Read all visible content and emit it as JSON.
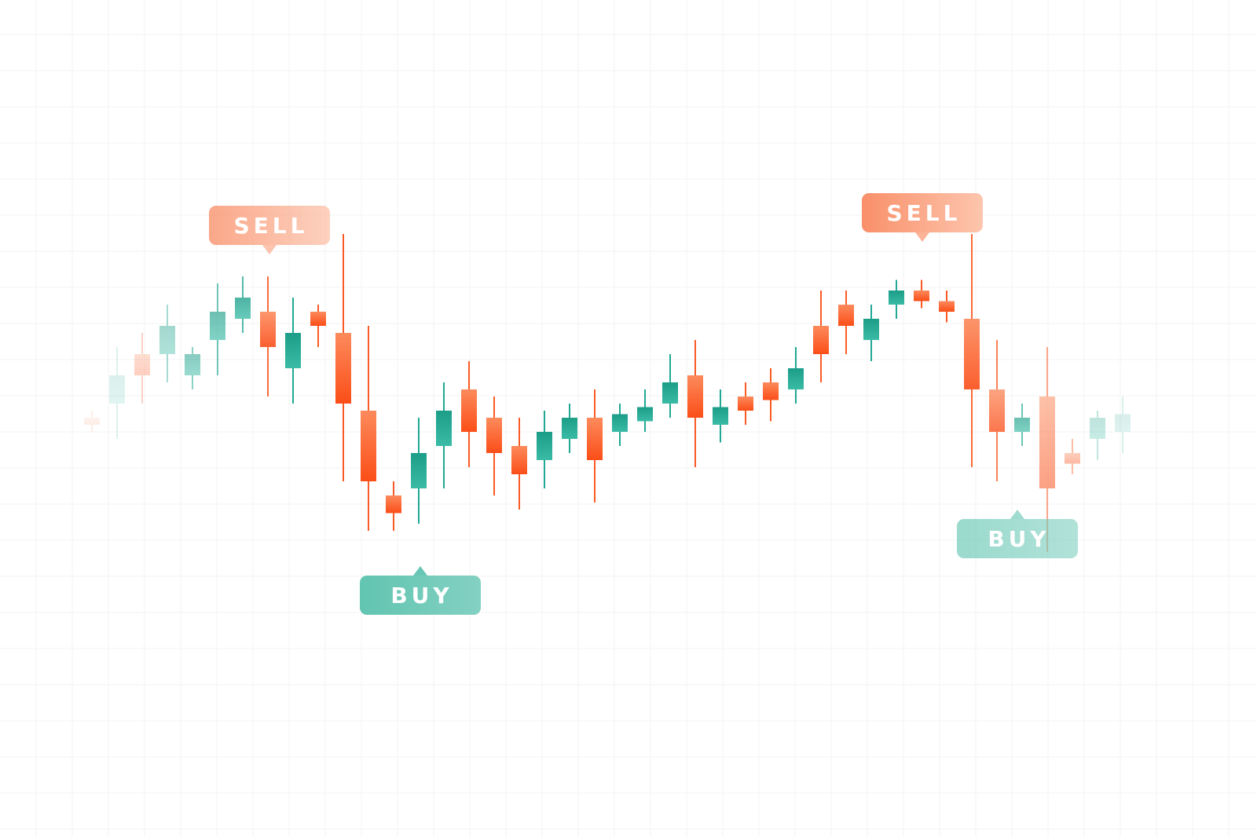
{
  "chart_data": {
    "type": "candlestick",
    "title": "",
    "xlabel": "",
    "ylabel": "",
    "grid": true,
    "ylim": [
      0,
      100
    ],
    "candles": [
      {
        "i": 0,
        "open": 52.0,
        "close": 51.0,
        "high": 53.0,
        "low": 50.0
      },
      {
        "i": 1,
        "open": 54.0,
        "close": 58.0,
        "high": 62.0,
        "low": 49.0
      },
      {
        "i": 2,
        "open": 61.0,
        "close": 58.0,
        "high": 64.0,
        "low": 54.0
      },
      {
        "i": 3,
        "open": 61.0,
        "close": 65.0,
        "high": 68.0,
        "low": 57.0
      },
      {
        "i": 4,
        "open": 58.0,
        "close": 61.0,
        "high": 62.0,
        "low": 56.0
      },
      {
        "i": 5,
        "open": 63.0,
        "close": 67.0,
        "high": 71.0,
        "low": 58.0
      },
      {
        "i": 6,
        "open": 66.0,
        "close": 69.0,
        "high": 72.0,
        "low": 64.0
      },
      {
        "i": 7,
        "open": 67.0,
        "close": 62.0,
        "high": 72.0,
        "low": 55.0
      },
      {
        "i": 8,
        "open": 59.0,
        "close": 64.0,
        "high": 69.0,
        "low": 54.0
      },
      {
        "i": 9,
        "open": 67.0,
        "close": 65.0,
        "high": 68.0,
        "low": 62.0
      },
      {
        "i": 10,
        "open": 64.0,
        "close": 54.0,
        "high": 78.0,
        "low": 43.0
      },
      {
        "i": 11,
        "open": 53.0,
        "close": 43.0,
        "high": 65.0,
        "low": 36.0
      },
      {
        "i": 12,
        "open": 41.0,
        "close": 38.5,
        "high": 43.0,
        "low": 36.0
      },
      {
        "i": 13,
        "open": 42.0,
        "close": 47.0,
        "high": 52.0,
        "low": 37.0
      },
      {
        "i": 14,
        "open": 48.0,
        "close": 53.0,
        "high": 57.0,
        "low": 42.0
      },
      {
        "i": 15,
        "open": 56.0,
        "close": 50.0,
        "high": 60.0,
        "low": 45.0
      },
      {
        "i": 16,
        "open": 52.0,
        "close": 47.0,
        "high": 55.0,
        "low": 41.0
      },
      {
        "i": 17,
        "open": 48.0,
        "close": 44.0,
        "high": 52.0,
        "low": 39.0
      },
      {
        "i": 18,
        "open": 46.0,
        "close": 50.0,
        "high": 53.0,
        "low": 42.0
      },
      {
        "i": 19,
        "open": 49.0,
        "close": 52.0,
        "high": 54.0,
        "low": 47.0
      },
      {
        "i": 20,
        "open": 52.0,
        "close": 46.0,
        "high": 56.0,
        "low": 40.0
      },
      {
        "i": 21,
        "open": 50.0,
        "close": 52.5,
        "high": 54.0,
        "low": 48.0
      },
      {
        "i": 22,
        "open": 51.5,
        "close": 53.5,
        "high": 56.0,
        "low": 50.0
      },
      {
        "i": 23,
        "open": 54.0,
        "close": 57.0,
        "high": 61.0,
        "low": 52.0
      },
      {
        "i": 24,
        "open": 58.0,
        "close": 52.0,
        "high": 63.0,
        "low": 45.0
      },
      {
        "i": 25,
        "open": 51.0,
        "close": 53.5,
        "high": 56.0,
        "low": 48.5
      },
      {
        "i": 26,
        "open": 55.0,
        "close": 53.0,
        "high": 57.0,
        "low": 51.0
      },
      {
        "i": 27,
        "open": 57.0,
        "close": 54.5,
        "high": 59.0,
        "low": 51.5
      },
      {
        "i": 28,
        "open": 56.0,
        "close": 59.0,
        "high": 62.0,
        "low": 54.0
      },
      {
        "i": 29,
        "open": 65.0,
        "close": 61.0,
        "high": 70.0,
        "low": 57.0
      },
      {
        "i": 30,
        "open": 68.0,
        "close": 65.0,
        "high": 70.0,
        "low": 61.0
      },
      {
        "i": 31,
        "open": 63.0,
        "close": 66.0,
        "high": 68.0,
        "low": 60.0
      },
      {
        "i": 32,
        "open": 68.0,
        "close": 70.0,
        "high": 71.5,
        "low": 66.0
      },
      {
        "i": 33,
        "open": 70.0,
        "close": 68.5,
        "high": 71.5,
        "low": 67.5
      },
      {
        "i": 34,
        "open": 68.5,
        "close": 67.0,
        "high": 70.0,
        "low": 65.5
      },
      {
        "i": 35,
        "open": 66.0,
        "close": 56.0,
        "high": 78.0,
        "low": 45.0
      },
      {
        "i": 36,
        "open": 56.0,
        "close": 50.0,
        "high": 63.0,
        "low": 43.0
      },
      {
        "i": 37,
        "open": 50.0,
        "close": 52.0,
        "high": 54.0,
        "low": 48.0
      },
      {
        "i": 38,
        "open": 55.0,
        "close": 42.0,
        "high": 62.0,
        "low": 33.0
      },
      {
        "i": 39,
        "open": 47.0,
        "close": 45.5,
        "high": 49.0,
        "low": 44.0
      },
      {
        "i": 40,
        "open": 49.0,
        "close": 52.0,
        "high": 53.0,
        "low": 46.0
      },
      {
        "i": 41,
        "open": 50.0,
        "close": 52.5,
        "high": 55.0,
        "low": 47.0
      }
    ],
    "annotations": [
      {
        "label": "SELL",
        "type": "sell",
        "candle": 7
      },
      {
        "label": "BUY",
        "type": "buy",
        "candle": 12
      },
      {
        "label": "SELL",
        "type": "sell",
        "candle": 33
      },
      {
        "label": "BUY",
        "type": "buy",
        "candle": 37
      }
    ]
  },
  "colors": {
    "bullish": "#20a893",
    "bearish": "#fb5a24",
    "sell_badge": "#fb9f7e",
    "buy_badge": "#63c8b5",
    "grid": "#f3f3f3",
    "background": "#ffffff"
  }
}
